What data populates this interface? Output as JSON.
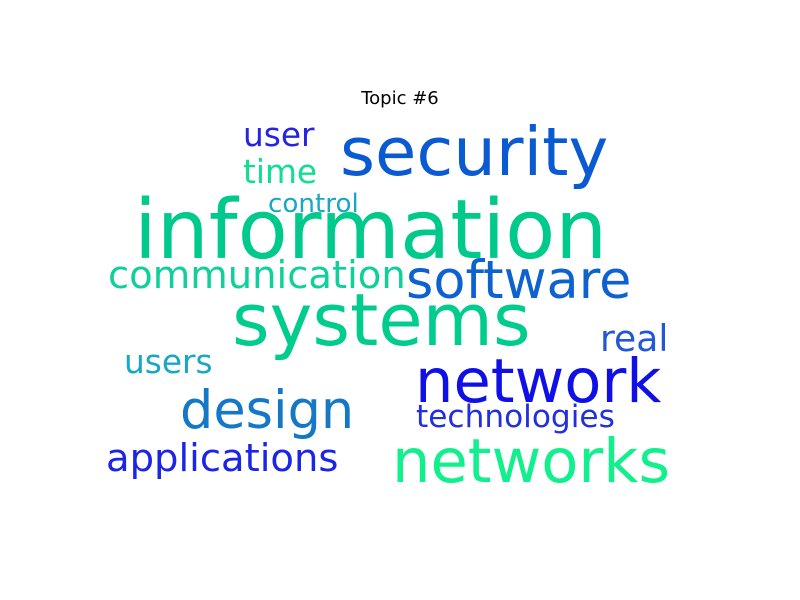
{
  "chart_data": {
    "type": "wordcloud",
    "title": "Topic #6",
    "words": [
      {
        "text": "information",
        "weight": 1.0,
        "color": "#00c98c"
      },
      {
        "text": "systems",
        "weight": 0.88,
        "color": "#00cc8e"
      },
      {
        "text": "security",
        "weight": 0.82,
        "color": "#0a5ad2"
      },
      {
        "text": "network",
        "weight": 0.74,
        "color": "#1010e6"
      },
      {
        "text": "networks",
        "weight": 0.74,
        "color": "#12f08e"
      },
      {
        "text": "design",
        "weight": 0.64,
        "color": "#1478c6"
      },
      {
        "text": "software",
        "weight": 0.64,
        "color": "#0e62d0"
      },
      {
        "text": "communication",
        "weight": 0.47,
        "color": "#10d09a"
      },
      {
        "text": "applications",
        "weight": 0.47,
        "color": "#1c24e6"
      },
      {
        "text": "real",
        "weight": 0.44,
        "color": "#2258d8"
      },
      {
        "text": "users",
        "weight": 0.4,
        "color": "#18a8c4"
      },
      {
        "text": "user",
        "weight": 0.4,
        "color": "#2424e2"
      },
      {
        "text": "time",
        "weight": 0.4,
        "color": "#10de92"
      },
      {
        "text": "technologies",
        "weight": 0.38,
        "color": "#2030dc"
      },
      {
        "text": "control",
        "weight": 0.32,
        "color": "#18a8c4"
      }
    ]
  }
}
